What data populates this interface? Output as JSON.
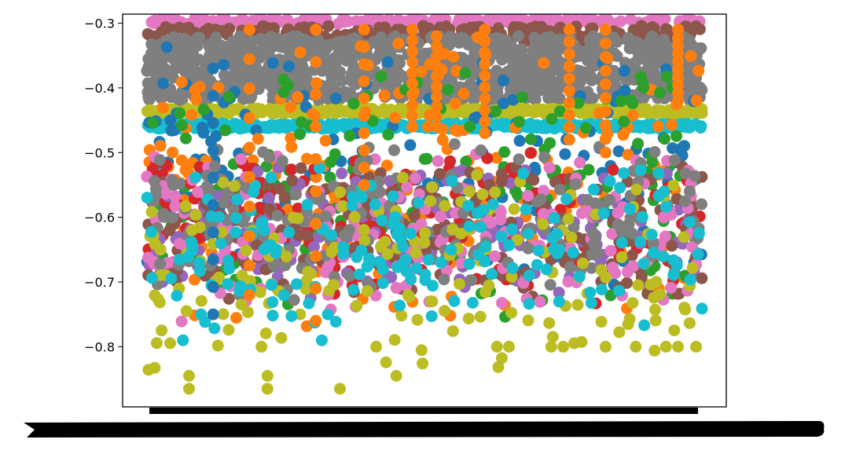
{
  "chart_data": {
    "type": "scatter",
    "title": "",
    "xlabel": "",
    "ylabel": "",
    "xlim": [
      0,
      1
    ],
    "ylim": [
      -0.893,
      -0.286
    ],
    "yticks": [
      -0.3,
      -0.4,
      -0.5,
      -0.6,
      -0.7,
      -0.8
    ],
    "ytick_labels": [
      "−0.3",
      "−0.4",
      "−0.5",
      "−0.6",
      "−0.7",
      "−0.8"
    ],
    "xtick_labels_note": "x tick labels are rendered as an illegible solid black band",
    "legend": "none",
    "grid": false,
    "x_range": [
      0.04,
      0.96
    ],
    "bands": [
      {
        "color": "#e377c2",
        "y_center": -0.297,
        "spread": 0.004
      },
      {
        "color": "#8c564b",
        "y_center": -0.316,
        "spread": 0.012
      },
      {
        "color": "#7f7f7f",
        "y_center": -0.37,
        "spread": 0.05
      },
      {
        "color": "#bcbd22",
        "y_center": -0.436,
        "spread": 0.004
      },
      {
        "color": "#17becf",
        "y_center": -0.459,
        "spread": 0.004
      }
    ],
    "scatter_series": [
      {
        "color": "#1f77b4",
        "y_range": [
          -0.75,
          -0.33
        ]
      },
      {
        "color": "#ff7f0e",
        "y_range": [
          -0.78,
          -0.31
        ]
      },
      {
        "color": "#2ca02c",
        "y_range": [
          -0.77,
          -0.37
        ]
      },
      {
        "color": "#d62728",
        "y_range": [
          -0.74,
          -0.5
        ]
      },
      {
        "color": "#9467bd",
        "y_range": [
          -0.74,
          -0.52
        ]
      },
      {
        "color": "#8c564b",
        "y_range": [
          -0.74,
          -0.52
        ]
      },
      {
        "color": "#e377c2",
        "y_range": [
          -0.765,
          -0.5
        ]
      },
      {
        "color": "#7f7f7f",
        "y_range": [
          -0.74,
          -0.48
        ]
      },
      {
        "color": "#bcbd22",
        "y_range": [
          -0.87,
          -0.53
        ]
      },
      {
        "color": "#17becf",
        "y_range": [
          -0.79,
          -0.52
        ]
      }
    ],
    "vertical_streaks": [
      {
        "x": 0.15,
        "color": "#1f77b4",
        "y_from": -0.37,
        "y_to": -0.75
      },
      {
        "x": 0.21,
        "color": "#ff7f0e",
        "y_from": -0.31,
        "y_to": -0.72
      },
      {
        "x": 0.32,
        "color": "#ff7f0e",
        "y_from": -0.31,
        "y_to": -0.76
      },
      {
        "x": 0.4,
        "color": "#ff7f0e",
        "y_from": -0.31,
        "y_to": -0.55
      },
      {
        "x": 0.48,
        "color": "#ff7f0e",
        "y_from": -0.31,
        "y_to": -0.46
      },
      {
        "x": 0.52,
        "color": "#ff7f0e",
        "y_from": -0.32,
        "y_to": -0.46
      },
      {
        "x": 0.6,
        "color": "#ff7f0e",
        "y_from": -0.31,
        "y_to": -0.47
      },
      {
        "x": 0.74,
        "color": "#ff7f0e",
        "y_from": -0.31,
        "y_to": -0.48
      },
      {
        "x": 0.8,
        "color": "#ff7f0e",
        "y_from": -0.31,
        "y_to": -0.5
      },
      {
        "x": 0.92,
        "color": "#ff7f0e",
        "y_from": -0.31,
        "y_to": -0.42
      }
    ],
    "low_outliers": [
      {
        "x": 0.11,
        "y": -0.845,
        "color": "#bcbd22"
      },
      {
        "x": 0.11,
        "y": -0.865,
        "color": "#bcbd22"
      },
      {
        "x": 0.23,
        "y": -0.8,
        "color": "#bcbd22"
      },
      {
        "x": 0.24,
        "y": -0.845,
        "color": "#bcbd22"
      },
      {
        "x": 0.24,
        "y": -0.865,
        "color": "#bcbd22"
      },
      {
        "x": 0.36,
        "y": -0.865,
        "color": "#bcbd22"
      },
      {
        "x": 0.42,
        "y": -0.8,
        "color": "#bcbd22"
      },
      {
        "x": 0.62,
        "y": -0.8,
        "color": "#bcbd22"
      },
      {
        "x": 0.64,
        "y": -0.8,
        "color": "#bcbd22"
      },
      {
        "x": 0.71,
        "y": -0.8,
        "color": "#bcbd22"
      },
      {
        "x": 0.73,
        "y": -0.8,
        "color": "#bcbd22"
      },
      {
        "x": 0.8,
        "y": -0.8,
        "color": "#bcbd22"
      },
      {
        "x": 0.85,
        "y": -0.8,
        "color": "#bcbd22"
      },
      {
        "x": 0.9,
        "y": -0.8,
        "color": "#bcbd22"
      },
      {
        "x": 0.92,
        "y": -0.8,
        "color": "#bcbd22"
      },
      {
        "x": 0.95,
        "y": -0.8,
        "color": "#bcbd22"
      },
      {
        "x": 0.1,
        "y": -0.79,
        "color": "#17becf"
      },
      {
        "x": 0.13,
        "y": -0.75,
        "color": "#17becf"
      },
      {
        "x": 0.33,
        "y": -0.79,
        "color": "#17becf"
      },
      {
        "x": 0.34,
        "y": -0.75,
        "color": "#17becf"
      }
    ]
  }
}
